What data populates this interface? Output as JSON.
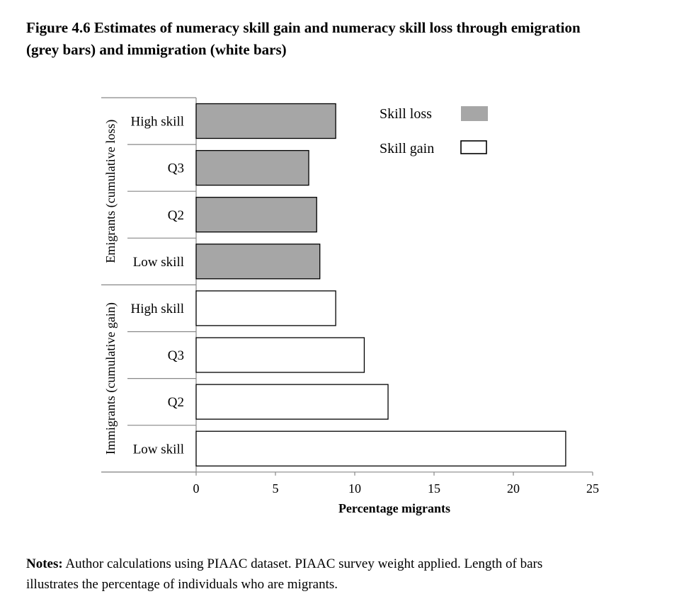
{
  "figure": {
    "title_line1": "Figure 4.6 Estimates of numeracy skill gain and numeracy skill loss through emigration",
    "title_line2": "(grey bars) and immigration (white bars)"
  },
  "notes": {
    "label": "Notes:",
    "text_line1": " Author calculations using PIAAC dataset. PIAAC survey weight applied. Length of bars",
    "text_line2": "illustrates the percentage of individuals who are migrants."
  },
  "colors": {
    "loss_fill": "#a6a6a6",
    "gain_fill": "#ffffff",
    "stroke": "#000000",
    "axis": "#888888"
  },
  "chart_data": {
    "type": "bar",
    "orientation": "horizontal",
    "xlabel": "Percentage migrants",
    "xlim": [
      0,
      25
    ],
    "xticks": [
      0,
      5,
      10,
      15,
      20,
      25
    ],
    "groups": [
      {
        "name": "Emigrants (cumulative loss)",
        "series": "Skill loss",
        "categories": [
          "High skill",
          "Q3",
          "Q2",
          "Low skill"
        ],
        "values": [
          8.8,
          7.1,
          7.6,
          7.8
        ]
      },
      {
        "name": "Immigrants (cumulative gain)",
        "series": "Skill gain",
        "categories": [
          "High skill",
          "Q3",
          "Q2",
          "Low skill"
        ],
        "values": [
          8.8,
          10.6,
          12.1,
          23.3
        ]
      }
    ],
    "legend": {
      "position": "top-right",
      "entries": [
        {
          "label": "Skill loss",
          "fill": "#a6a6a6"
        },
        {
          "label": "Skill gain",
          "fill": "#ffffff"
        }
      ]
    },
    "grid": false
  }
}
